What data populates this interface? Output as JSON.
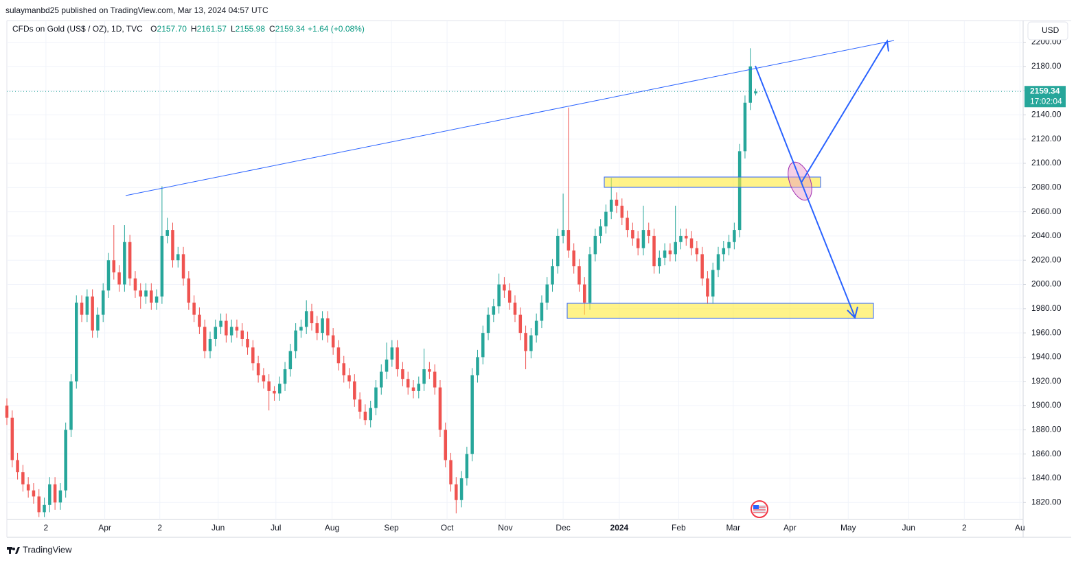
{
  "header": {
    "publisher": "sulaymanbd25 published on TradingView.com, Mar 13, 2024 04:57 UTC",
    "symbol": "CFDs on Gold (US$ / OZ), 1D, TVC",
    "ohlc": [
      {
        "key": "O",
        "value": "2157.70"
      },
      {
        "key": "H",
        "value": "2161.57"
      },
      {
        "key": "L",
        "value": "2155.98"
      },
      {
        "key": "C",
        "value": "2159.34"
      }
    ],
    "change": "+1.64 (+0.08%)",
    "currency": "USD",
    "brand": "TradingView"
  },
  "chart_data": {
    "type": "candlestick",
    "up_color": "#26a69a",
    "down_color": "#ef5350",
    "grid": true,
    "countdown": "17:02:04",
    "open": [
      1900,
      1890,
      1855,
      1845,
      1835,
      1830,
      1825,
      1812,
      1818,
      1835,
      1820,
      1830,
      1880,
      1920,
      1985,
      1975,
      1990,
      1962,
      1975,
      1995,
      2020,
      2010,
      2000,
      2035,
      2005,
      1995,
      1990,
      1995,
      1985,
      1990,
      2040,
      2045,
      2020,
      2025,
      2005,
      1985,
      1975,
      1965,
      1945,
      1955,
      1965,
      1970,
      1958,
      1965,
      1962,
      1955,
      1948,
      1935,
      1925,
      1920,
      1912,
      1910,
      1918,
      1930,
      1945,
      1962,
      1965,
      1978,
      1968,
      1960,
      1972,
      1958,
      1948,
      1935,
      1925,
      1920,
      1905,
      1895,
      1888,
      1898,
      1915,
      1928,
      1938,
      1948,
      1930,
      1922,
      1915,
      1912,
      1918,
      1930,
      1928,
      1915,
      1880,
      1855,
      1835,
      1822,
      1840,
      1860,
      1925,
      1940,
      1960,
      1975,
      1982,
      2000,
      1995,
      1985,
      1975,
      1960,
      1945,
      1958,
      1970,
      1985,
      2000,
      2015,
      2040,
      2045,
      2028,
      2015,
      2000,
      1985,
      2025,
      2040,
      2048,
      2060,
      2070,
      2065,
      2055,
      2045,
      2038,
      2030,
      2045,
      2040,
      2015,
      2022,
      2028,
      2025,
      2035,
      2040,
      2038,
      2030,
      2025,
      2005,
      1990,
      2012,
      2025,
      2030,
      2035,
      2045,
      2110,
      2150,
      2157.7
    ],
    "high": [
      1906,
      1896,
      1861,
      1851,
      1841,
      1836,
      1831,
      1824,
      1841,
      1841,
      1836,
      1886,
      1926,
      1991,
      1991,
      1996,
      1996,
      1981,
      2001,
      2026,
      2049,
      2016,
      2049,
      2041,
      2011,
      2001,
      2001,
      2001,
      1996,
      2081,
      2055,
      2051,
      2031,
      2031,
      2011,
      1991,
      1981,
      1971,
      1961,
      1971,
      1976,
      1976,
      1971,
      1971,
      1968,
      1961,
      1954,
      1941,
      1931,
      1926,
      1916,
      1924,
      1936,
      1951,
      1968,
      1971,
      1987,
      1984,
      1974,
      1978,
      1978,
      1964,
      1954,
      1941,
      1931,
      1926,
      1911,
      1901,
      1904,
      1921,
      1934,
      1952,
      1954,
      1954,
      1936,
      1928,
      1921,
      1924,
      1947,
      1936,
      1934,
      1921,
      1886,
      1861,
      1841,
      1846,
      1866,
      1931,
      1946,
      1966,
      1981,
      1988,
      2009,
      2006,
      2001,
      1991,
      1981,
      1966,
      1964,
      1976,
      1991,
      2006,
      2021,
      2046,
      2075,
      2146,
      2034,
      2021,
      2006,
      2031,
      2046,
      2054,
      2066,
      2088,
      2076,
      2071,
      2061,
      2051,
      2044,
      2065,
      2051,
      2046,
      2028,
      2034,
      2034,
      2065,
      2046,
      2046,
      2044,
      2036,
      2031,
      2011,
      2018,
      2031,
      2036,
      2041,
      2051,
      2116,
      2156,
      2195,
      2161.57
    ],
    "low": [
      1884,
      1849,
      1839,
      1829,
      1824,
      1819,
      1808,
      1808,
      1812,
      1814,
      1814,
      1824,
      1874,
      1914,
      1969,
      1969,
      1956,
      1956,
      1969,
      1989,
      2004,
      1994,
      1994,
      1999,
      1989,
      1980,
      1984,
      1979,
      1979,
      1984,
      2034,
      2014,
      2014,
      1999,
      1979,
      1969,
      1959,
      1939,
      1939,
      1949,
      1959,
      1952,
      1952,
      1956,
      1949,
      1942,
      1929,
      1919,
      1914,
      1896,
      1904,
      1904,
      1912,
      1924,
      1939,
      1956,
      1959,
      1962,
      1954,
      1954,
      1952,
      1942,
      1929,
      1919,
      1914,
      1899,
      1889,
      1884,
      1882,
      1892,
      1909,
      1922,
      1932,
      1924,
      1916,
      1909,
      1906,
      1906,
      1912,
      1922,
      1909,
      1874,
      1849,
      1829,
      1811,
      1816,
      1834,
      1854,
      1919,
      1934,
      1954,
      1969,
      1976,
      1989,
      1979,
      1969,
      1954,
      1930,
      1939,
      1952,
      1964,
      1979,
      1994,
      2009,
      2034,
      2022,
      2009,
      1994,
      1975,
      1979,
      2019,
      2034,
      2042,
      2054,
      2059,
      2049,
      2039,
      2032,
      2024,
      2024,
      2034,
      2009,
      2009,
      2016,
      2019,
      2019,
      2029,
      2032,
      2024,
      2019,
      1999,
      1984,
      1984,
      2006,
      2019,
      2024,
      2029,
      2039,
      2104,
      2144,
      2155.98
    ],
    "close": [
      1890,
      1855,
      1845,
      1835,
      1830,
      1825,
      1812,
      1818,
      1835,
      1820,
      1830,
      1880,
      1920,
      1985,
      1975,
      1990,
      1962,
      1975,
      1995,
      2020,
      2010,
      2000,
      2035,
      2005,
      1995,
      1990,
      1995,
      1985,
      1990,
      2040,
      2045,
      2020,
      2025,
      2005,
      1985,
      1975,
      1965,
      1945,
      1955,
      1965,
      1970,
      1958,
      1965,
      1962,
      1955,
      1948,
      1935,
      1925,
      1920,
      1912,
      1910,
      1918,
      1930,
      1945,
      1962,
      1965,
      1978,
      1968,
      1960,
      1972,
      1958,
      1948,
      1935,
      1925,
      1920,
      1905,
      1895,
      1888,
      1898,
      1915,
      1928,
      1938,
      1948,
      1930,
      1922,
      1915,
      1912,
      1918,
      1930,
      1928,
      1915,
      1880,
      1855,
      1835,
      1822,
      1840,
      1860,
      1925,
      1940,
      1960,
      1975,
      1982,
      2000,
      1995,
      1985,
      1975,
      1960,
      1945,
      1958,
      1970,
      1985,
      2000,
      2015,
      2040,
      2045,
      2028,
      2015,
      2000,
      1985,
      2025,
      2040,
      2048,
      2060,
      2070,
      2065,
      2055,
      2045,
      2038,
      2030,
      2045,
      2040,
      2015,
      2022,
      2028,
      2025,
      2035,
      2040,
      2038,
      2030,
      2025,
      2005,
      1990,
      2012,
      2025,
      2030,
      2035,
      2045,
      2110,
      2150,
      2180,
      2159.34
    ],
    "xlim": [
      0,
      190
    ],
    "xticks": [
      {
        "value": 7.3,
        "label": "2"
      },
      {
        "value": 18.3,
        "label": "Apr"
      },
      {
        "value": 28.6,
        "label": "2"
      },
      {
        "value": 39.5,
        "label": "Jun"
      },
      {
        "value": 50.3,
        "label": "Jul"
      },
      {
        "value": 60.8,
        "label": "Aug"
      },
      {
        "value": 71.9,
        "label": "Sep"
      },
      {
        "value": 82.3,
        "label": "Oct"
      },
      {
        "value": 93.2,
        "label": "Nov"
      },
      {
        "value": 104,
        "label": "Dec"
      },
      {
        "value": 114.5,
        "label": "2024"
      },
      {
        "value": 125.6,
        "label": "Feb"
      },
      {
        "value": 135.8,
        "label": "Mar"
      },
      {
        "value": 146.4,
        "label": "Apr"
      },
      {
        "value": 157.3,
        "label": "May"
      },
      {
        "value": 168.6,
        "label": "Jun"
      },
      {
        "value": 179,
        "label": "2"
      },
      {
        "value": 189.4,
        "label": "Au"
      }
    ],
    "ylim": [
      1806,
      2215
    ],
    "yticks": [
      {
        "value": 1820,
        "label": "1820.00"
      },
      {
        "value": 1840,
        "label": "1840.00"
      },
      {
        "value": 1860,
        "label": "1860.00"
      },
      {
        "value": 1880,
        "label": "1880.00"
      },
      {
        "value": 1900,
        "label": "1900.00"
      },
      {
        "value": 1920,
        "label": "1920.00"
      },
      {
        "value": 1940,
        "label": "1940.00"
      },
      {
        "value": 1960,
        "label": "1960.00"
      },
      {
        "value": 1980,
        "label": "1980.00"
      },
      {
        "value": 2000,
        "label": "2000.00"
      },
      {
        "value": 2020,
        "label": "2020.00"
      },
      {
        "value": 2040,
        "label": "2040.00"
      },
      {
        "value": 2060,
        "label": "2060.00"
      },
      {
        "value": 2080,
        "label": "2080.00"
      },
      {
        "value": 2100,
        "label": "2100.00"
      },
      {
        "value": 2120,
        "label": "2120.00"
      },
      {
        "value": 2140,
        "label": "2140.00"
      },
      {
        "value": 2160,
        "label": "2160.00"
      },
      {
        "value": 2180,
        "label": "2180.00"
      },
      {
        "value": 2200,
        "label": "2200.00"
      }
    ]
  }
}
